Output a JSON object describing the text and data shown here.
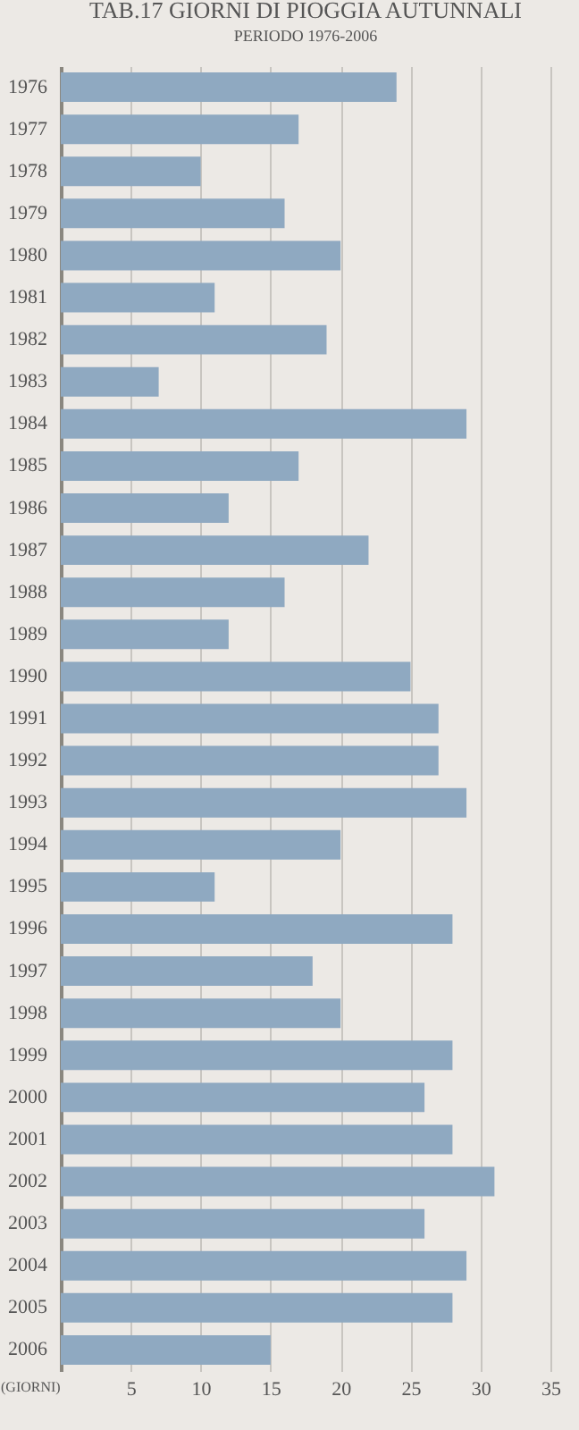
{
  "chart_data": {
    "type": "bar",
    "orientation": "horizontal",
    "title": "TAB.17  GIORNI DI PIOGGIA AUTUNNALI",
    "subtitle": "PERIODO 1976-2006",
    "xlabel": "(GIORNI)",
    "categories": [
      "1976",
      "1977",
      "1978",
      "1979",
      "1980",
      "1981",
      "1982",
      "1983",
      "1984",
      "1985",
      "1986",
      "1987",
      "1988",
      "1989",
      "1990",
      "1991",
      "1992",
      "1993",
      "1994",
      "1995",
      "1996",
      "1997",
      "1998",
      "1999",
      "2000",
      "2001",
      "2002",
      "2003",
      "2004",
      "2005",
      "2006"
    ],
    "values": [
      24,
      17,
      10,
      16,
      20,
      11,
      19,
      7,
      29,
      17,
      12,
      22,
      16,
      12,
      25,
      27,
      27,
      29,
      20,
      11,
      28,
      18,
      20,
      28,
      26,
      28,
      31,
      26,
      29,
      28,
      15
    ],
    "color": "#8fa9c1",
    "xlim": [
      0,
      35
    ],
    "xticks": [
      {
        "value": 0,
        "label": null
      },
      5,
      10,
      15,
      20,
      25,
      30,
      35
    ],
    "grid": "x"
  }
}
